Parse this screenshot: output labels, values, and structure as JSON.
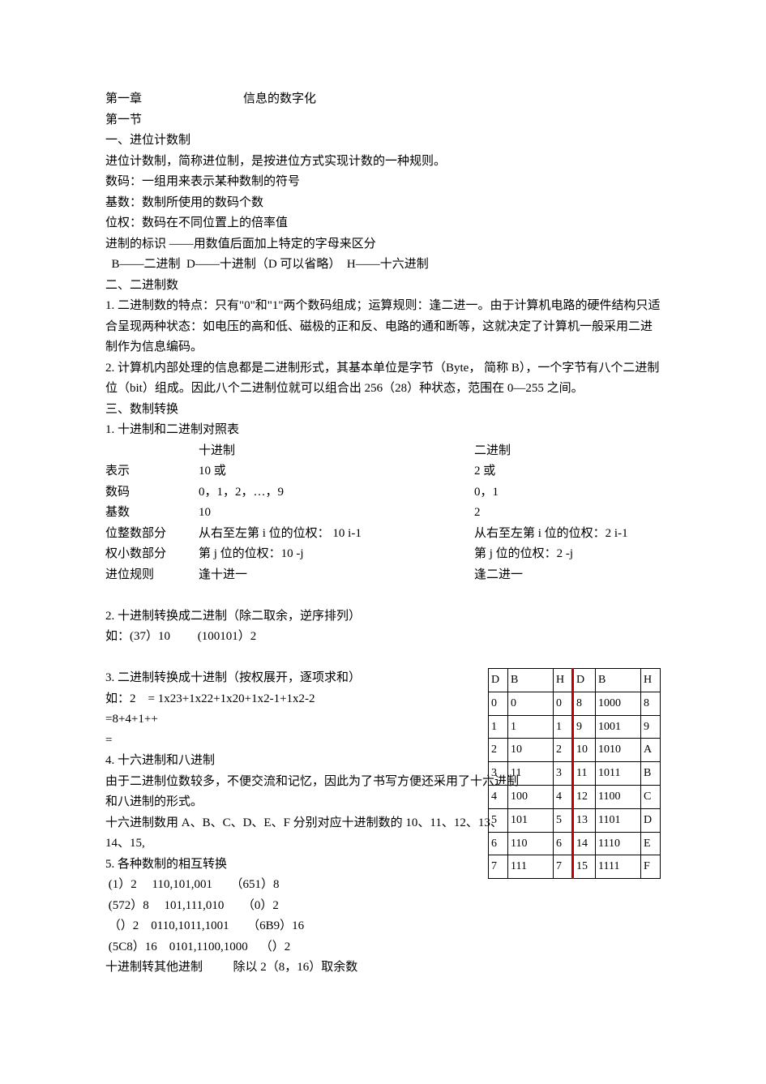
{
  "chapter": {
    "label": "第一章",
    "title": "信息的数字化"
  },
  "section": "第一节",
  "heading1": "一、进位计数制",
  "p1": "进位计数制，简称进位制，是按进位方式实现计数的一种规则。",
  "p2": "数码：一组用来表示某种数制的符号",
  "p3": "基数：数制所使用的数码个数",
  "p4": "位权：数码在不同位置上的倍率值",
  "p5": "进制的标识 ——用数值后面加上特定的字母来区分",
  "p6": "  B——二进制  D——十进制（D 可以省略）  H——十六进制",
  "heading2": "二、二进制数",
  "p7": "1.    二进制数的特点：只有\"0\"和\"1\"两个数码组成；运算规则：逢二进一。由于计算机电路的硬件结构只适合呈现两种状态：如电压的高和低、磁极的正和反、电路的通和断等，这就决定了计算机一般采用二进制作为信息编码。",
  "p8": "2.      计算机内部处理的信息都是二进制形式，其基本单位是字节（Byte， 简称 B），一个字节有八个二进制位（bit）组成。因此八个二进制位就可以组合出 256（28）种状态，范围在 0—255 之间。",
  "heading3": "三、数制转换",
  "p9": "1.     十进制和二进制对照表",
  "table1": {
    "headers": {
      "blank": "",
      "dec": "十进制",
      "bin": "二进制"
    },
    "rows": [
      {
        "label": "表示",
        "dec": "10 或",
        "bin": "2 或"
      },
      {
        "label": "数码",
        "dec": "0，1，2，…，9",
        "bin": "0，1"
      },
      {
        "label": "基数",
        "dec": "10",
        "bin": "2"
      },
      {
        "label": "位整数部分",
        "dec": "从右至左第 i 位的位权：  10 i-1",
        "bin": "从右至左第 i 位的位权：2 i-1"
      },
      {
        "label": "权小数部分",
        "dec": "第 j 位的位权：10 -j",
        "bin": "第 j 位的位权：2 -j"
      },
      {
        "label": "进位规则",
        "dec": "逢十进一",
        "bin": "逢二进一"
      }
    ]
  },
  "p10": "2.     十进制转换成二进制（除二取余，逆序排列）",
  "p11": "如：(37）10         (100101）2",
  "p12": "3.              二进制转换成十进制（按权展开，逐项求和）",
  "p13": "如：2    = 1x23+1x22+1x20+1x2-1+1x2-2",
  "p14": "=8+4+1++",
  "p15": "=",
  "p16": "4.              十六进制和八进制",
  "p17": "由于二进制位数较多，不便交流和记忆，因此为了书写方便还采用了十六进制和八进制的形式。",
  "p18": "十六进制数用 A、B、C、D、E、F 分别对应十进制数的 10、11、12、13、14、15,",
  "p19": "5.       各种数制的相互转换",
  "p20": " (1）2     110,101,001      （651）8",
  "p21": " (572）8     101,111,010      （0）2",
  "p22": " （）2    0110,1011,1001      （6B9）16",
  "p23": " (5C8）16    0101,1100,1000    （）2",
  "p24": "十进制转其他进制          除以 2（8，16）取余数",
  "convTable": {
    "headers": [
      "D",
      "B",
      "H",
      "D",
      "B",
      "H"
    ],
    "rows": [
      [
        "0",
        "0",
        "0",
        "8",
        "1000",
        "8"
      ],
      [
        "1",
        "1",
        "1",
        "9",
        "1001",
        "9"
      ],
      [
        "2",
        "10",
        "2",
        "10",
        "1010",
        "A"
      ],
      [
        "3",
        "11",
        "3",
        "11",
        "1011",
        "B"
      ],
      [
        "4",
        "100",
        "4",
        "12",
        "1100",
        "C"
      ],
      [
        "5",
        "101",
        "5",
        "13",
        "1101",
        "D"
      ],
      [
        "6",
        "110",
        "6",
        "14",
        "1110",
        "E"
      ],
      [
        "7",
        "111",
        "7",
        "15",
        "1111",
        "F"
      ]
    ]
  }
}
